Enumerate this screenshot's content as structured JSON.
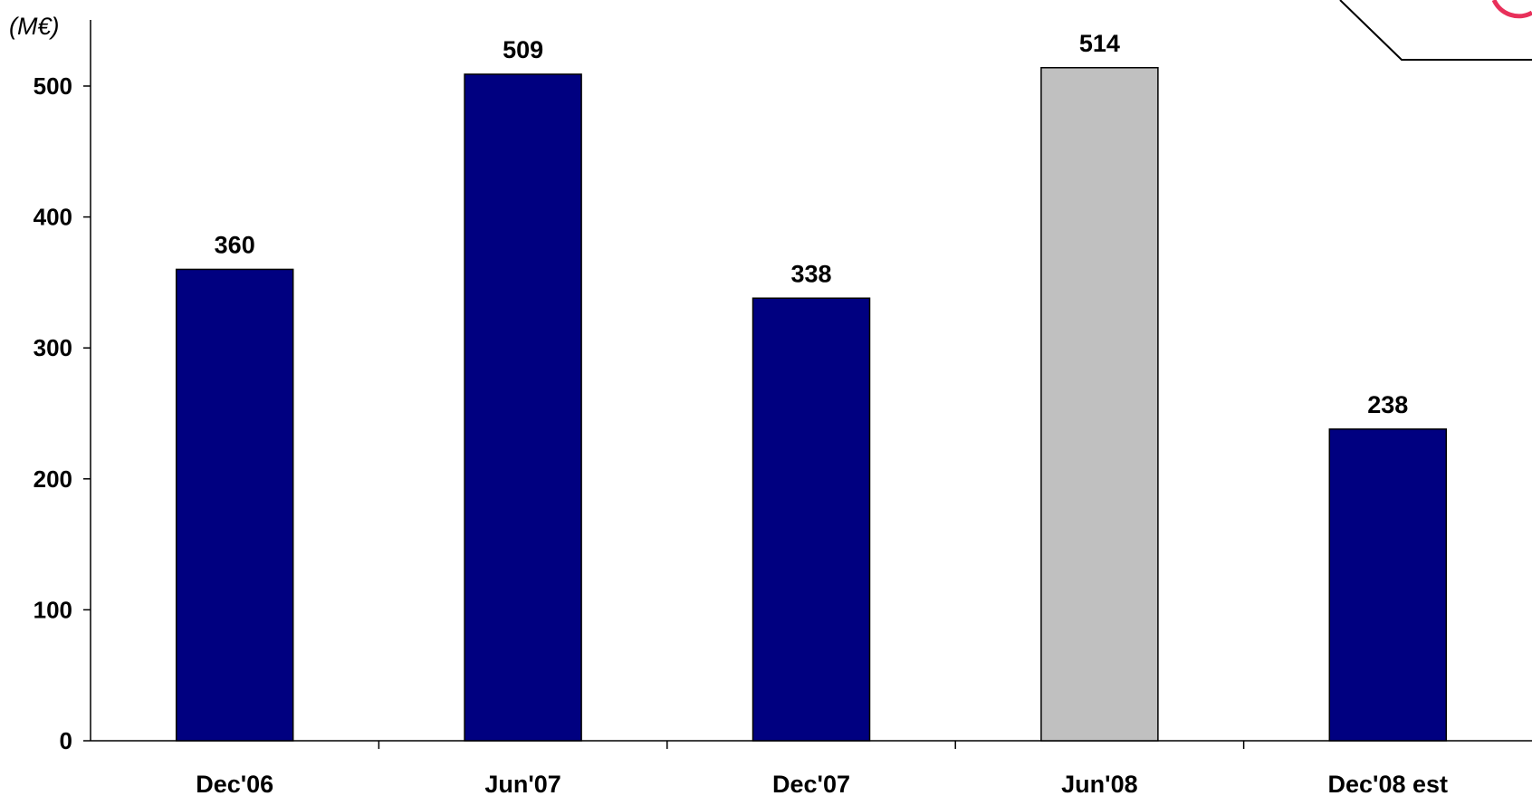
{
  "chart_data": {
    "type": "bar",
    "unit_label": "(M€)",
    "categories": [
      "Dec'06",
      "Jun'07",
      "Dec'07",
      "Jun'08",
      "Dec'08 est"
    ],
    "values": [
      360,
      509,
      338,
      514,
      238
    ],
    "bar_colors": [
      "#000080",
      "#000080",
      "#000080",
      "#C0C0C0",
      "#000080"
    ],
    "data_labels": [
      "360",
      "509",
      "338",
      "514",
      "238"
    ],
    "yticks": [
      0,
      100,
      200,
      300,
      400,
      500
    ],
    "ylim": [
      0,
      550
    ],
    "grid": false,
    "legend": false,
    "title": "",
    "xlabel": "",
    "ylabel": ""
  }
}
